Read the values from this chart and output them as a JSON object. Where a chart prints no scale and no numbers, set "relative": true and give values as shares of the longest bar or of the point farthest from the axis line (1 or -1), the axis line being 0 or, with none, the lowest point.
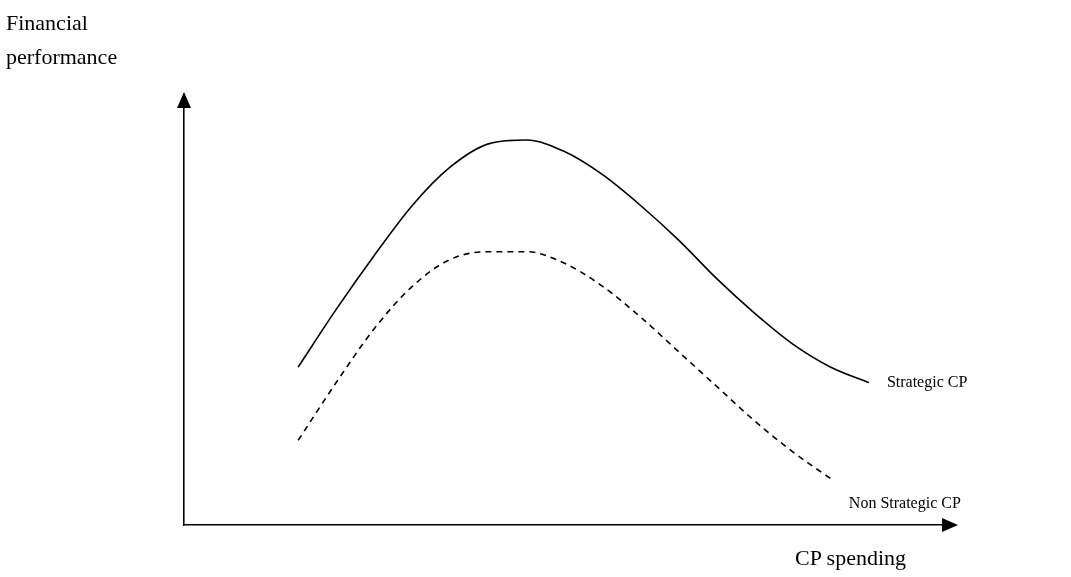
{
  "chart_data": {
    "type": "line",
    "relative": true,
    "xlabel": "CP spending",
    "ylabel": "Financial performance",
    "grid": false,
    "legend": false,
    "marker": "none",
    "categories": [
      null,
      null,
      null,
      null,
      null,
      null,
      null,
      null,
      null,
      null,
      null,
      null,
      null,
      null,
      null,
      null,
      null,
      null,
      null,
      null,
      null
    ],
    "series": [
      {
        "name": "Strategic CP",
        "color": "#000000",
        "line_style": "solid",
        "values": [
          null,
          null,
          null,
          0.41,
          0.56,
          0.7,
          0.83,
          0.93,
          0.99,
          1.0,
          0.97,
          0.91,
          0.83,
          0.74,
          0.64,
          0.55,
          0.47,
          0.41,
          0.37,
          null,
          null
        ]
      },
      {
        "name": "Non Strategic CP",
        "color": "#000000",
        "line_style": "dashed",
        "values": [
          null,
          null,
          null,
          0.22,
          0.37,
          0.51,
          0.62,
          0.69,
          0.71,
          0.71,
          0.68,
          0.62,
          0.54,
          0.45,
          0.36,
          0.27,
          0.19,
          0.12,
          null,
          null,
          null
        ]
      }
    ]
  }
}
